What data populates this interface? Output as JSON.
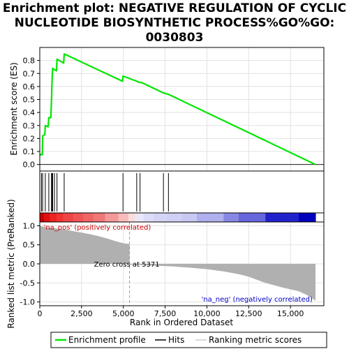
{
  "figure": {
    "title_lines": [
      "Enrichment plot: NEGATIVE REGULATION OF CYCLIC",
      "NUCLEOTIDE BIOSYNTHETIC PROCESS%GO%GO:",
      "0030803"
    ]
  },
  "chart_data": [
    {
      "type": "line",
      "panel": "enrichment-profile",
      "ylabel": "Enrichment score (ES)",
      "xlim": [
        0,
        17000
      ],
      "ylim": [
        -0.05,
        0.9
      ],
      "yticks": [
        0.0,
        0.1,
        0.2,
        0.3,
        0.4,
        0.5,
        0.6,
        0.7,
        0.8
      ],
      "ytick_labels": [
        "0.0",
        "0.1",
        "0.2",
        "0.3",
        "0.4",
        "0.5",
        "0.6",
        "0.7",
        "0.8"
      ],
      "grid": true,
      "color": "#00e600",
      "series": [
        {
          "x": [
            0,
            100,
            150,
            170,
            300,
            330,
            500,
            540,
            660,
            700,
            720,
            740,
            770,
            850,
            880,
            1000,
            1030,
            1430,
            1460,
            4950,
            4980,
            5800,
            6000,
            6100,
            7400,
            7700,
            16500
          ],
          "y": [
            0.07,
            0.08,
            0.075,
            0.22,
            0.23,
            0.3,
            0.29,
            0.36,
            0.36,
            0.5,
            0.58,
            0.66,
            0.74,
            0.73,
            0.73,
            0.72,
            0.81,
            0.78,
            0.85,
            0.64,
            0.68,
            0.64,
            0.63,
            0.63,
            0.55,
            0.54,
            0.0
          ]
        }
      ]
    },
    {
      "type": "scatter",
      "panel": "hits",
      "marker": "vertical-tick",
      "x": [
        100,
        170,
        330,
        540,
        700,
        720,
        740,
        770,
        880,
        1030,
        1460,
        4980,
        5800,
        6000,
        7400,
        7700
      ]
    },
    {
      "type": "heatmap",
      "panel": "rank-color-bar",
      "x_edges": [
        0,
        250,
        600,
        1000,
        1400,
        2000,
        2600,
        3200,
        3900,
        4700,
        5300,
        5700,
        6200,
        6800,
        7600,
        8500,
        9400,
        11000,
        11900,
        13500,
        15500,
        16500
      ],
      "colors": [
        "#cc0000",
        "#dd1111",
        "#ee2222",
        "#ee3333",
        "#f04444",
        "#f05555",
        "#f06666",
        "#f07777",
        "#f49999",
        "#f8bbbb",
        "#fcdddd",
        "#e8e8f8",
        "#dcdcf6",
        "#d4d4f6",
        "#d0d0f6",
        "#c8c8f2",
        "#b0b0ee",
        "#8888e4",
        "#6666dd",
        "#2222cc",
        "#0000bb"
      ]
    },
    {
      "type": "area",
      "panel": "ranked-list-metric",
      "xlabel": "Rank in Ordered Dataset",
      "ylabel": "Ranked list metric (PreRanked)",
      "xlim": [
        0,
        17000
      ],
      "ylim": [
        -1.1,
        1.1
      ],
      "xticks": [
        0,
        2500,
        5000,
        7500,
        10000,
        12500,
        15000
      ],
      "xtick_labels": [
        "0",
        "2,500",
        "5,000",
        "7,500",
        "10,000",
        "12,500",
        "15,000"
      ],
      "yticks": [
        -1.0,
        -0.5,
        0.0,
        0.5,
        1.0
      ],
      "ytick_labels": [
        "-1.0",
        "-0.5",
        "0.0",
        "0.5",
        "1.0"
      ],
      "grid": true,
      "color": "#b0b0b0",
      "series": [
        {
          "x": [
            0,
            150,
            500,
            1000,
            1500,
            2000,
            2500,
            3000,
            3500,
            4000,
            4500,
            5000,
            5371,
            5372,
            6000,
            7000,
            8000,
            9000,
            10000,
            11000,
            12000,
            12500,
            13000,
            13500,
            14000,
            14500,
            15000,
            15500,
            16000,
            16300,
            16500
          ],
          "y": [
            1.0,
            0.98,
            0.95,
            0.93,
            0.9,
            0.86,
            0.82,
            0.78,
            0.73,
            0.67,
            0.6,
            0.54,
            0.52,
            -0.02,
            -0.03,
            -0.05,
            -0.07,
            -0.1,
            -0.14,
            -0.2,
            -0.28,
            -0.34,
            -0.42,
            -0.5,
            -0.56,
            -0.62,
            -0.67,
            -0.72,
            -0.82,
            -0.9,
            -0.97
          ]
        }
      ],
      "annotations": [
        {
          "text": "'na_pos' (positively correlated)",
          "x": 150,
          "y": 0.95,
          "color": "#cc0000"
        },
        {
          "text": "Zero cross at 5371",
          "x": 5371,
          "y": 0.0,
          "color": "#000000"
        },
        {
          "text": "'na_neg' (negatively correlated)",
          "x": 13000,
          "y": -0.92,
          "color": "#0000cc"
        }
      ],
      "zero_cross": 5371
    }
  ],
  "legend": {
    "placement": "bottom",
    "entries": [
      {
        "label": "Enrichment profile",
        "color": "#00e600"
      },
      {
        "label": "Hits",
        "color": "#000000"
      },
      {
        "label": "Ranking metric scores",
        "color": "#b0b0b0"
      }
    ]
  }
}
